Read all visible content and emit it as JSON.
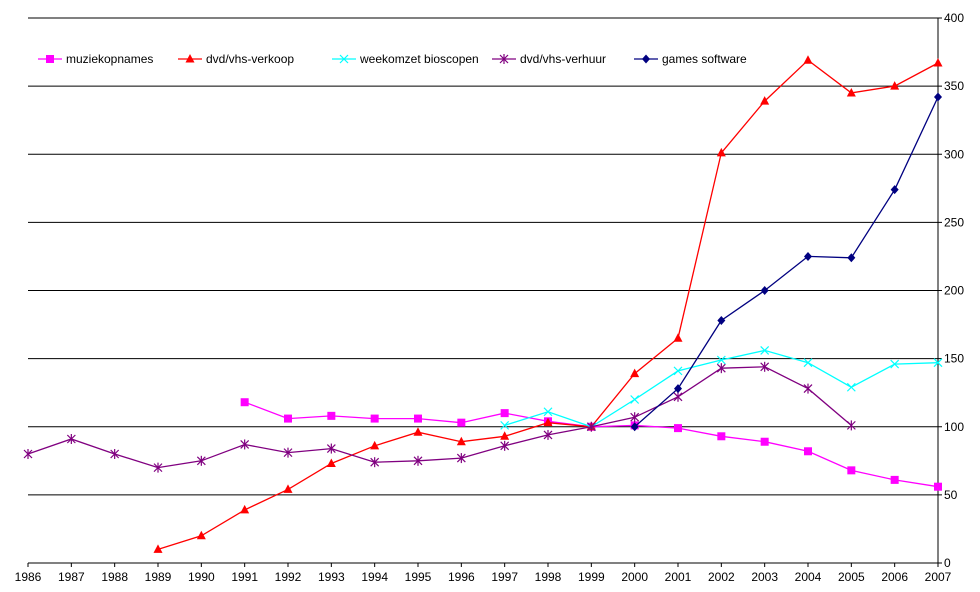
{
  "chart_data": {
    "type": "line",
    "title": "",
    "xlabel": "",
    "ylabel": "",
    "x": [
      "1986",
      "1987",
      "1988",
      "1989",
      "1990",
      "1991",
      "1992",
      "1993",
      "1994",
      "1995",
      "1996",
      "1997",
      "1998",
      "1999",
      "2000",
      "2001",
      "2002",
      "2003",
      "2004",
      "2005",
      "2006",
      "2007"
    ],
    "ylim": [
      0,
      400
    ],
    "yticks": [
      0,
      50,
      100,
      150,
      200,
      250,
      300,
      350,
      400
    ],
    "y_axis_side": "right",
    "grid": {
      "horizontal": true,
      "vertical": false
    },
    "legend_position": "top-left",
    "series": [
      {
        "name": "muziekopnames",
        "color": "#ff00ff",
        "marker": "square",
        "values": [
          null,
          null,
          null,
          null,
          null,
          118,
          106,
          108,
          106,
          106,
          103,
          110,
          104,
          100,
          101,
          99,
          93,
          89,
          82,
          68,
          61,
          56
        ]
      },
      {
        "name": "dvd/vhs-verkoop",
        "color": "#ff0000",
        "marker": "triangle",
        "values": [
          null,
          null,
          null,
          10,
          20,
          39,
          54,
          73,
          86,
          96,
          89,
          93,
          103,
          100,
          139,
          165,
          301,
          339,
          369,
          345,
          350,
          367
        ]
      },
      {
        "name": "weekomzet bioscopen",
        "color": "#00ffff",
        "marker": "x",
        "values": [
          null,
          null,
          null,
          null,
          null,
          null,
          null,
          null,
          null,
          null,
          null,
          101,
          111,
          100,
          120,
          141,
          149,
          156,
          147,
          129,
          146,
          147
        ]
      },
      {
        "name": "dvd/vhs-verhuur",
        "color": "#800080",
        "marker": "star",
        "values": [
          80,
          91,
          80,
          70,
          75,
          87,
          81,
          84,
          74,
          75,
          77,
          86,
          94,
          100,
          107,
          122,
          143,
          144,
          128,
          101,
          null,
          null
        ]
      },
      {
        "name": "games software",
        "color": "#000080",
        "marker": "diamond",
        "values": [
          null,
          null,
          null,
          null,
          null,
          null,
          null,
          null,
          null,
          null,
          null,
          null,
          null,
          null,
          100,
          128,
          178,
          200,
          225,
          224,
          274,
          342
        ]
      }
    ]
  }
}
